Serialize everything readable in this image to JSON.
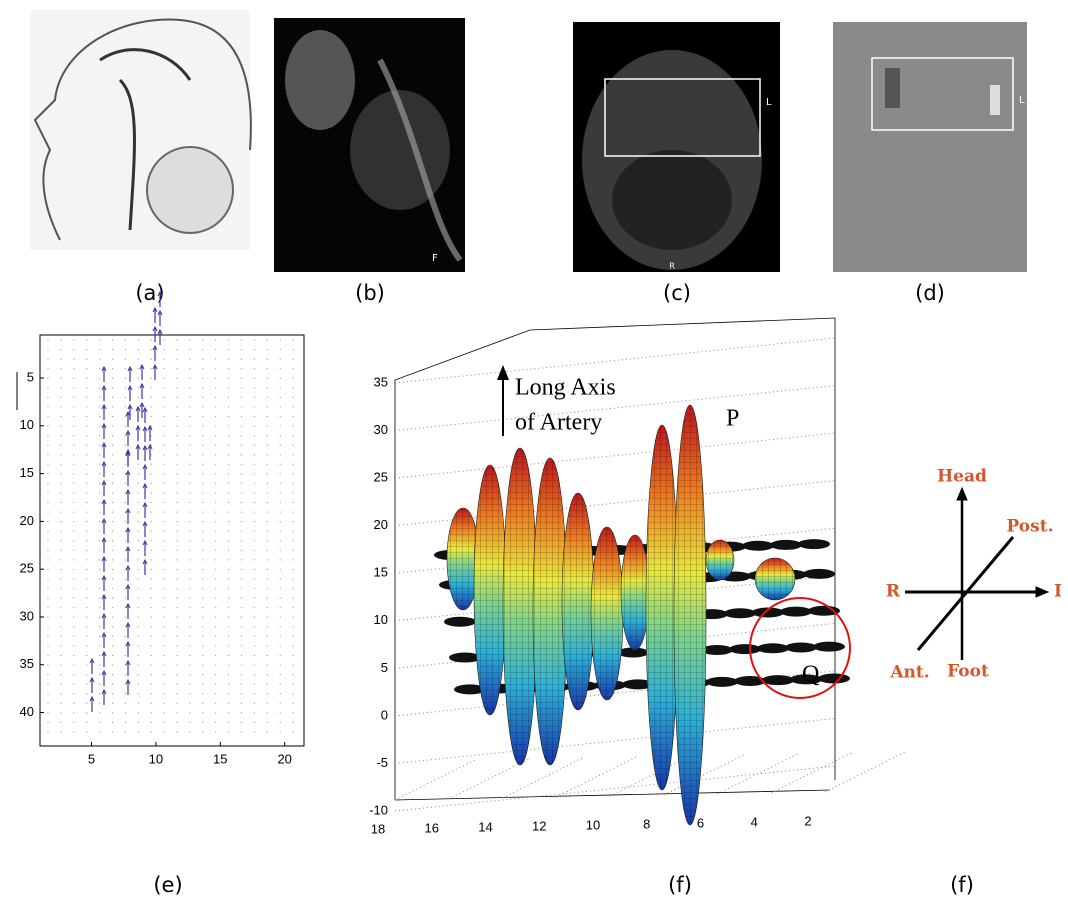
{
  "figure": {
    "panels": [
      {
        "label": "(a)"
      },
      {
        "label": "(b)",
        "marks": [
          "F"
        ]
      },
      {
        "label": "(c)",
        "marks": [
          "L",
          "R"
        ]
      },
      {
        "label": "(d)",
        "marks": [
          "L"
        ]
      }
    ],
    "quiver": {
      "label": "(e)",
      "xlim": [
        1,
        21.5
      ],
      "ylim": [
        0.5,
        43.5
      ],
      "xticks": [
        5,
        10,
        15,
        20
      ],
      "yticks": [
        5,
        10,
        15,
        20,
        25,
        30,
        35,
        40
      ]
    },
    "surface": {
      "label": "(f)",
      "zlim": [
        -10,
        35
      ],
      "zticks": [
        -10,
        -5,
        0,
        5,
        10,
        15,
        20,
        25,
        30,
        35
      ],
      "xlim": [
        18,
        2
      ],
      "xticks": [
        18,
        16,
        14,
        12,
        10,
        8,
        6,
        4,
        2
      ],
      "annotation": [
        "Long Axis",
        "of Artery"
      ],
      "point_p": "P",
      "point_q": "Q"
    },
    "orientation": {
      "label": "(f)",
      "head": "Head",
      "post": "Post.",
      "right": "R",
      "left": "I",
      "ant": "Ant.",
      "foot": "Foot"
    }
  }
}
